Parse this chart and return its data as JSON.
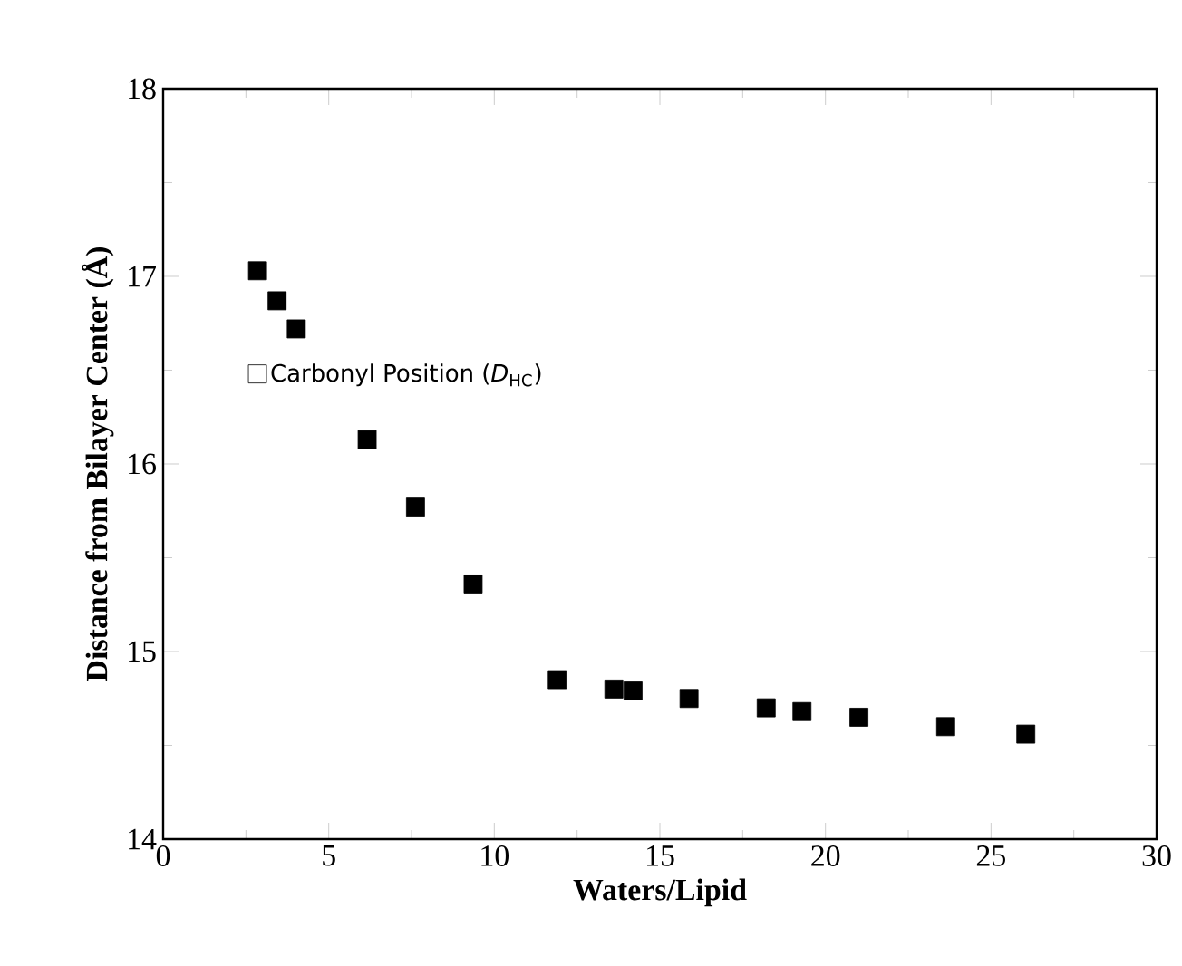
{
  "chart_data": {
    "type": "scatter",
    "xlabel": "Waters/Lipid",
    "ylabel": "Distance from Bilayer Center (Å)",
    "x": [
      2.85,
      3.44,
      4.02,
      6.16,
      7.62,
      9.36,
      11.9,
      13.61,
      14.19,
      15.88,
      18.21,
      19.29,
      21.01,
      23.63,
      26.05
    ],
    "series": [
      {
        "name": "Carbonyl Position (*D*$_{HC}$)",
        "color": "#000000",
        "values": [
          17.03,
          16.87,
          16.72,
          16.13,
          15.77,
          15.36,
          14.85,
          14.8,
          14.79,
          14.75,
          14.7,
          14.68,
          14.65,
          14.6,
          14.56
        ]
      }
    ],
    "xlim": [
      0,
      30
    ],
    "xticks": [
      0,
      5,
      10,
      15,
      20,
      25,
      30
    ],
    "ylim": [
      14,
      18
    ],
    "yticks": [
      14,
      15,
      16,
      17,
      18
    ],
    "marker": "square",
    "legend": "left",
    "grid": false
  }
}
